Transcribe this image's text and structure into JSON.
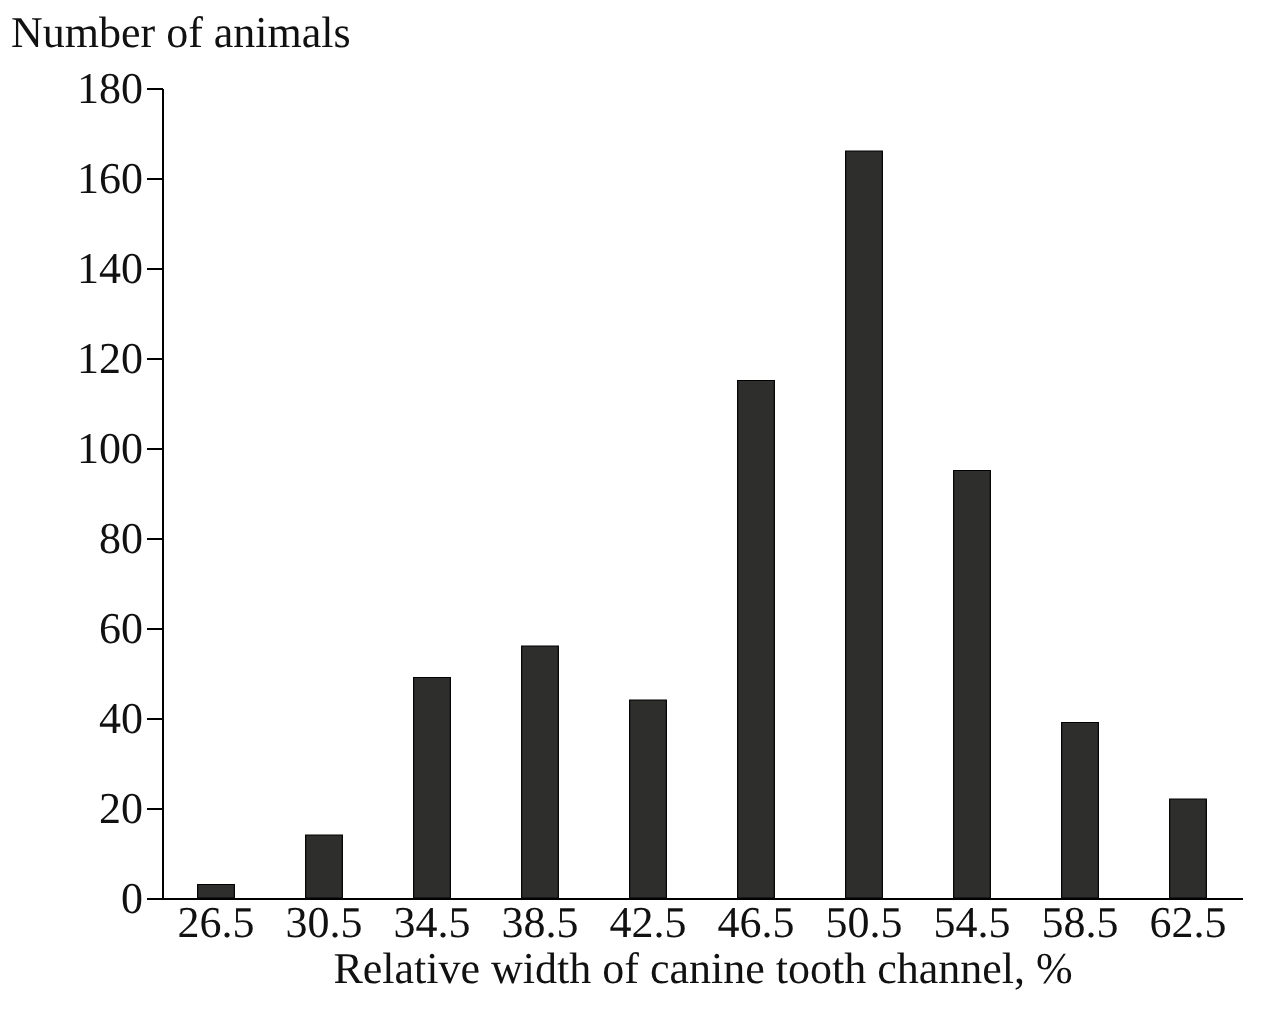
{
  "chart_data": {
    "type": "bar",
    "xlabel": "Relative width of canine tooth channel, %",
    "ylabel": "Number of animals",
    "categories": [
      "26.5",
      "30.5",
      "34.5",
      "38.5",
      "42.5",
      "46.5",
      "50.5",
      "54.5",
      "58.5",
      "62.5"
    ],
    "values": [
      3,
      14,
      49,
      56,
      44,
      115,
      166,
      95,
      39,
      22
    ],
    "color": "#2e2e2c",
    "ylim": [
      0,
      180
    ],
    "yticks": [
      0,
      20,
      40,
      60,
      80,
      100,
      120,
      140,
      160,
      180
    ],
    "grid": false
  }
}
